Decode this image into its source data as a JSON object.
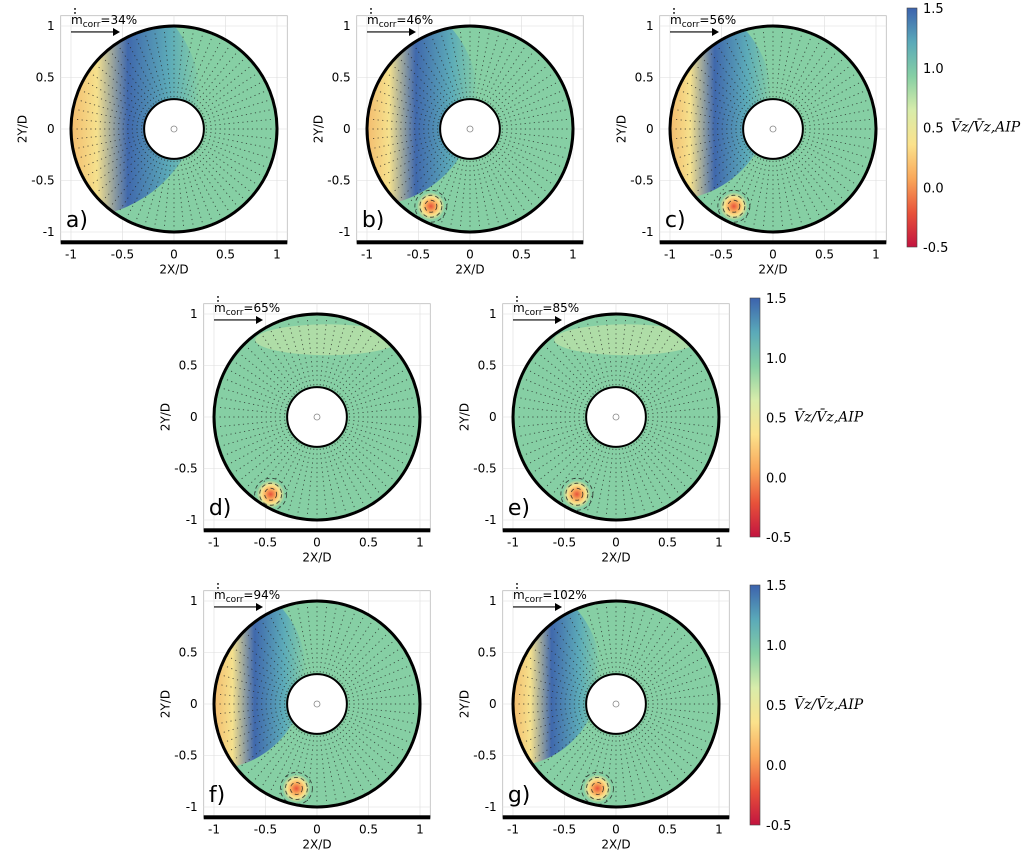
{
  "chart_data": {
    "type": "heatmap",
    "description_scalar": "Vz/Vz,AIP",
    "xlabel": "2X/D",
    "ylabel": "2Y/D",
    "xlim": [
      -1.1,
      1.1
    ],
    "ylim": [
      -1.1,
      1.1
    ],
    "ticks": [
      -1,
      -0.5,
      0,
      0.5,
      1
    ],
    "tick_labels": [
      "-1",
      "-0.5",
      "0",
      "0.5",
      "1"
    ],
    "grid": true,
    "hub_radius": 0.29,
    "outer_radius": 1.0,
    "mass_flow_label": "m",
    "mass_flow_subscript": "corr",
    "colorbar": {
      "label": "V̄z/V̄z,AIP",
      "range": [
        -0.5,
        1.5
      ],
      "ticks": [
        1.5,
        1.0,
        0.5,
        0.0,
        -0.5
      ],
      "tick_labels": [
        "1.5",
        "1.0",
        "0.5",
        "0.0",
        "-0.5"
      ],
      "colors": [
        "#c2143f",
        "#e8523a",
        "#f9a75a",
        "#fbe28c",
        "#d8ecaa",
        "#86cfa4",
        "#5aa9b9",
        "#3c63ad"
      ]
    },
    "panels": [
      {
        "label": "a)",
        "mass_flow": "=34%",
        "low_region_extent": 0.95,
        "vortex": null
      },
      {
        "label": "b)",
        "mass_flow": "=46%",
        "low_region_extent": 0.75,
        "vortex": {
          "x": -0.38,
          "y": -0.75
        }
      },
      {
        "label": "c)",
        "mass_flow": "=56%",
        "low_region_extent": 0.65,
        "vortex": {
          "x": -0.38,
          "y": -0.75
        }
      },
      {
        "label": "d)",
        "mass_flow": "=65%",
        "low_region_extent": 0.0,
        "vortex": {
          "x": -0.45,
          "y": -0.75
        }
      },
      {
        "label": "e)",
        "mass_flow": "=85%",
        "low_region_extent": 0.0,
        "vortex": {
          "x": -0.38,
          "y": -0.75
        }
      },
      {
        "label": "f)",
        "mass_flow": "=94%",
        "low_region_extent": 0.55,
        "vortex": {
          "x": -0.2,
          "y": -0.82
        }
      },
      {
        "label": "g)",
        "mass_flow": "=102%",
        "low_region_extent": 0.5,
        "vortex": {
          "x": -0.18,
          "y": -0.82
        }
      }
    ]
  }
}
